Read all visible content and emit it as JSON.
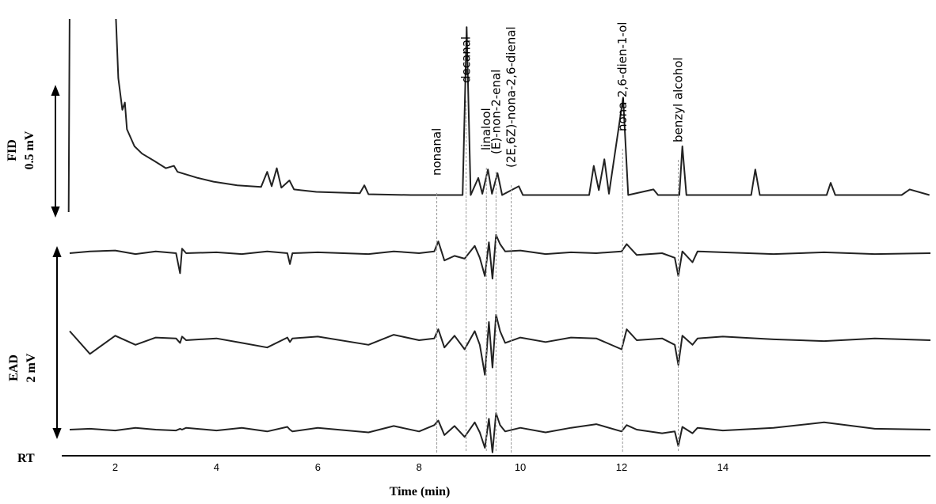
{
  "chart_data": [
    {
      "type": "line",
      "label": "FID",
      "scale_label": "0.5 mV",
      "scale": 0.5,
      "ylim": [
        -0.07,
        0.72
      ],
      "color": "#222222",
      "x": [
        1.08,
        1.1,
        1.12,
        2.0,
        2.06,
        2.14,
        2.19,
        2.23,
        2.38,
        2.53,
        2.77,
        3.0,
        3.16,
        3.23,
        3.63,
        3.94,
        4.41,
        4.88,
        5.0,
        5.09,
        5.19,
        5.28,
        5.44,
        5.53,
        5.97,
        6.83,
        6.92,
        7.0,
        7.84,
        8.86,
        8.94,
        9.02,
        9.17,
        9.25,
        9.36,
        9.44,
        9.55,
        9.64,
        9.97,
        10.05,
        11.36,
        11.45,
        11.55,
        11.66,
        11.75,
        12.03,
        12.13,
        12.63,
        12.72,
        13.14,
        13.2,
        13.28,
        14.56,
        14.64,
        14.73,
        16.05,
        16.13,
        16.22,
        17.53,
        17.69,
        18.08
      ],
      "series": [
        {
          "values": [
            -0.07,
            0.8,
            null,
            0.8,
            0.48,
            0.35,
            0.38,
            0.27,
            0.2,
            0.17,
            0.14,
            0.11,
            0.12,
            0.095,
            0.07,
            0.055,
            0.04,
            0.033,
            0.095,
            0.036,
            0.11,
            0.03,
            0.06,
            0.023,
            0.013,
            0.007,
            0.04,
            0.003,
            0,
            0,
            0.69,
            0,
            0.07,
            0.005,
            0.105,
            0.005,
            0.09,
            0,
            0.036,
            0,
            0,
            0.12,
            0.02,
            0.147,
            0.005,
            0.4,
            0,
            0.023,
            0,
            0,
            0.2,
            0,
            0,
            0.105,
            0,
            0,
            0.05,
            0,
            0,
            0.023,
            0
          ]
        }
      ],
      "annotations": [
        {
          "text": "nonanal",
          "x": 8.35
        },
        {
          "text": "decanal",
          "x": 8.93
        },
        {
          "text": "linalool",
          "x": 9.33
        },
        {
          "text": "(E)-non-2-enal",
          "x": 9.52
        },
        {
          "text": "(2E,6Z)-nona-2,6-dienal",
          "x": 9.82
        },
        {
          "text": "nona-2,6-dien-1-ol",
          "x": 12.02
        },
        {
          "text": "benzyl alcohol",
          "x": 13.12
        }
      ]
    },
    {
      "type": "line",
      "label": "EAD",
      "scale_label": "2 mV",
      "scale": 2,
      "color": "#222222",
      "xlabel": "Time (min)",
      "axis_label": "RT",
      "xlim": [
        1.1,
        18.1
      ],
      "xticks": [
        2,
        4,
        6,
        8,
        10,
        12,
        14
      ],
      "x": [
        1.1,
        1.5,
        2.0,
        2.4,
        2.8,
        3.2,
        3.28,
        3.32,
        3.4,
        4.0,
        4.5,
        5.0,
        5.4,
        5.45,
        5.5,
        6.0,
        7.0,
        7.5,
        8.0,
        8.3,
        8.38,
        8.5,
        8.7,
        8.9,
        9.1,
        9.2,
        9.3,
        9.38,
        9.45,
        9.52,
        9.6,
        9.7,
        10.0,
        10.5,
        11.0,
        11.5,
        12.0,
        12.1,
        12.3,
        12.8,
        13.05,
        13.12,
        13.2,
        13.4,
        13.5,
        14.0,
        15.0,
        16.0,
        17.0,
        18.1
      ],
      "series": [
        {
          "values": [
            0,
            0.02,
            0.03,
            -0.01,
            0.02,
            0,
            -0.22,
            0.05,
            0,
            0.01,
            -0.01,
            0.02,
            0,
            -0.12,
            0,
            0.01,
            -0.01,
            0.02,
            0,
            0.02,
            0.13,
            -0.08,
            -0.03,
            -0.06,
            0.08,
            -0.05,
            -0.25,
            0.12,
            -0.28,
            0.2,
            0.1,
            0.02,
            0.03,
            -0.01,
            0.01,
            0,
            0.02,
            0.1,
            -0.02,
            0,
            -0.05,
            -0.25,
            0.02,
            -0.1,
            0.02,
            0.01,
            -0.01,
            0.01,
            -0.01,
            0
          ]
        },
        {
          "values": [
            0.1,
            -0.15,
            0.05,
            -0.05,
            0.03,
            0.02,
            -0.03,
            0.04,
            0,
            0.02,
            -0.03,
            -0.08,
            0.03,
            -0.02,
            0.02,
            0.04,
            -0.05,
            0.06,
            0,
            0.02,
            0.12,
            -0.08,
            0.05,
            -0.1,
            0.1,
            -0.05,
            -0.38,
            0.2,
            -0.3,
            0.28,
            0.1,
            -0.03,
            0.03,
            -0.02,
            0.03,
            0.02,
            -0.1,
            0.12,
            0,
            0.02,
            -0.05,
            -0.27,
            0.05,
            -0.05,
            0.02,
            0.04,
            0.01,
            -0.01,
            0.02,
            0
          ]
        },
        {
          "values": [
            0,
            0.01,
            -0.01,
            0.02,
            0,
            -0.01,
            0.01,
            0,
            0.02,
            -0.01,
            0.02,
            -0.02,
            0.03,
            0,
            -0.02,
            0.02,
            -0.03,
            0.04,
            -0.02,
            0.05,
            0.1,
            -0.06,
            0.04,
            -0.08,
            0.08,
            -0.03,
            -0.2,
            0.12,
            -0.25,
            0.18,
            0.05,
            -0.02,
            0.02,
            -0.03,
            0.02,
            0.06,
            -0.02,
            0.05,
            0,
            -0.04,
            -0.02,
            -0.18,
            0.03,
            -0.04,
            0.02,
            -0.01,
            0.02,
            0.08,
            0.01,
            0
          ]
        }
      ]
    }
  ]
}
